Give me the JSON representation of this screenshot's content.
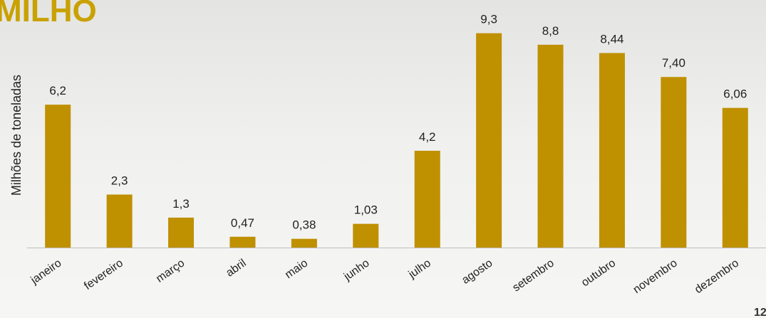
{
  "chart_data": {
    "type": "bar",
    "title": "MILHO",
    "y_label": "Milhões de toneladas",
    "categories": [
      "janeiro",
      "fevereiro",
      "março",
      "abril",
      "maio",
      "junho",
      "julho",
      "agosto",
      "setembro",
      "outubro",
      "novembro",
      "dezembro"
    ],
    "values": [
      6.2,
      2.3,
      1.3,
      0.47,
      0.38,
      1.03,
      4.2,
      9.3,
      8.8,
      8.44,
      7.4,
      6.06
    ],
    "value_labels": [
      "6,2",
      "2,3",
      "1,3",
      "0,47",
      "0,38",
      "1,03",
      "4,2",
      "9,3",
      "8,8",
      "8,44",
      "7,40",
      "6,06"
    ],
    "color": "#bf9000",
    "ylim": [
      0,
      10
    ]
  },
  "page_number": "12"
}
